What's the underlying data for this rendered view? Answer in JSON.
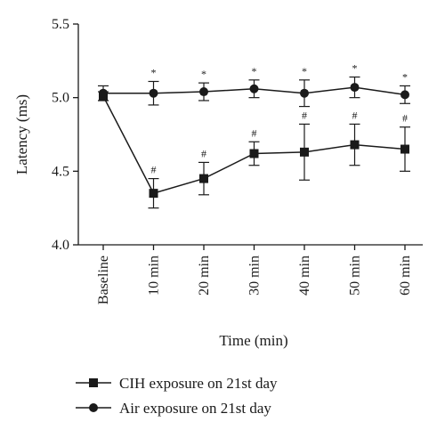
{
  "chart_data": {
    "type": "line",
    "title": "",
    "xlabel": "Time (min)",
    "ylabel": "Latency (ms)",
    "categories": [
      "Baseline",
      "10 min",
      "20 min",
      "30 min",
      "40 min",
      "50 min",
      "60 min"
    ],
    "y_ticks": [
      "4.0",
      "4.5",
      "5.0",
      "5.5"
    ],
    "ylim": [
      4.0,
      5.5
    ],
    "grid": false,
    "legend_position": "bottom",
    "series": [
      {
        "name": "CIH exposure on 21st day",
        "marker": "square",
        "values": [
          5.01,
          4.35,
          4.45,
          4.62,
          4.63,
          4.68,
          4.65
        ],
        "error": [
          0.03,
          0.1,
          0.11,
          0.08,
          0.19,
          0.14,
          0.15
        ],
        "annotations": [
          "",
          "#",
          "#",
          "#",
          "#",
          "#",
          "#"
        ]
      },
      {
        "name": "Air exposure on 21st day",
        "marker": "circle",
        "values": [
          5.03,
          5.03,
          5.04,
          5.06,
          5.03,
          5.07,
          5.02
        ],
        "error": [
          0.05,
          0.08,
          0.06,
          0.06,
          0.09,
          0.07,
          0.06
        ],
        "annotations": [
          "",
          "*",
          "*",
          "*",
          "*",
          "*",
          "*"
        ]
      }
    ],
    "colors": {
      "ink": "#1a1a1a",
      "background": "#ffffff"
    }
  }
}
